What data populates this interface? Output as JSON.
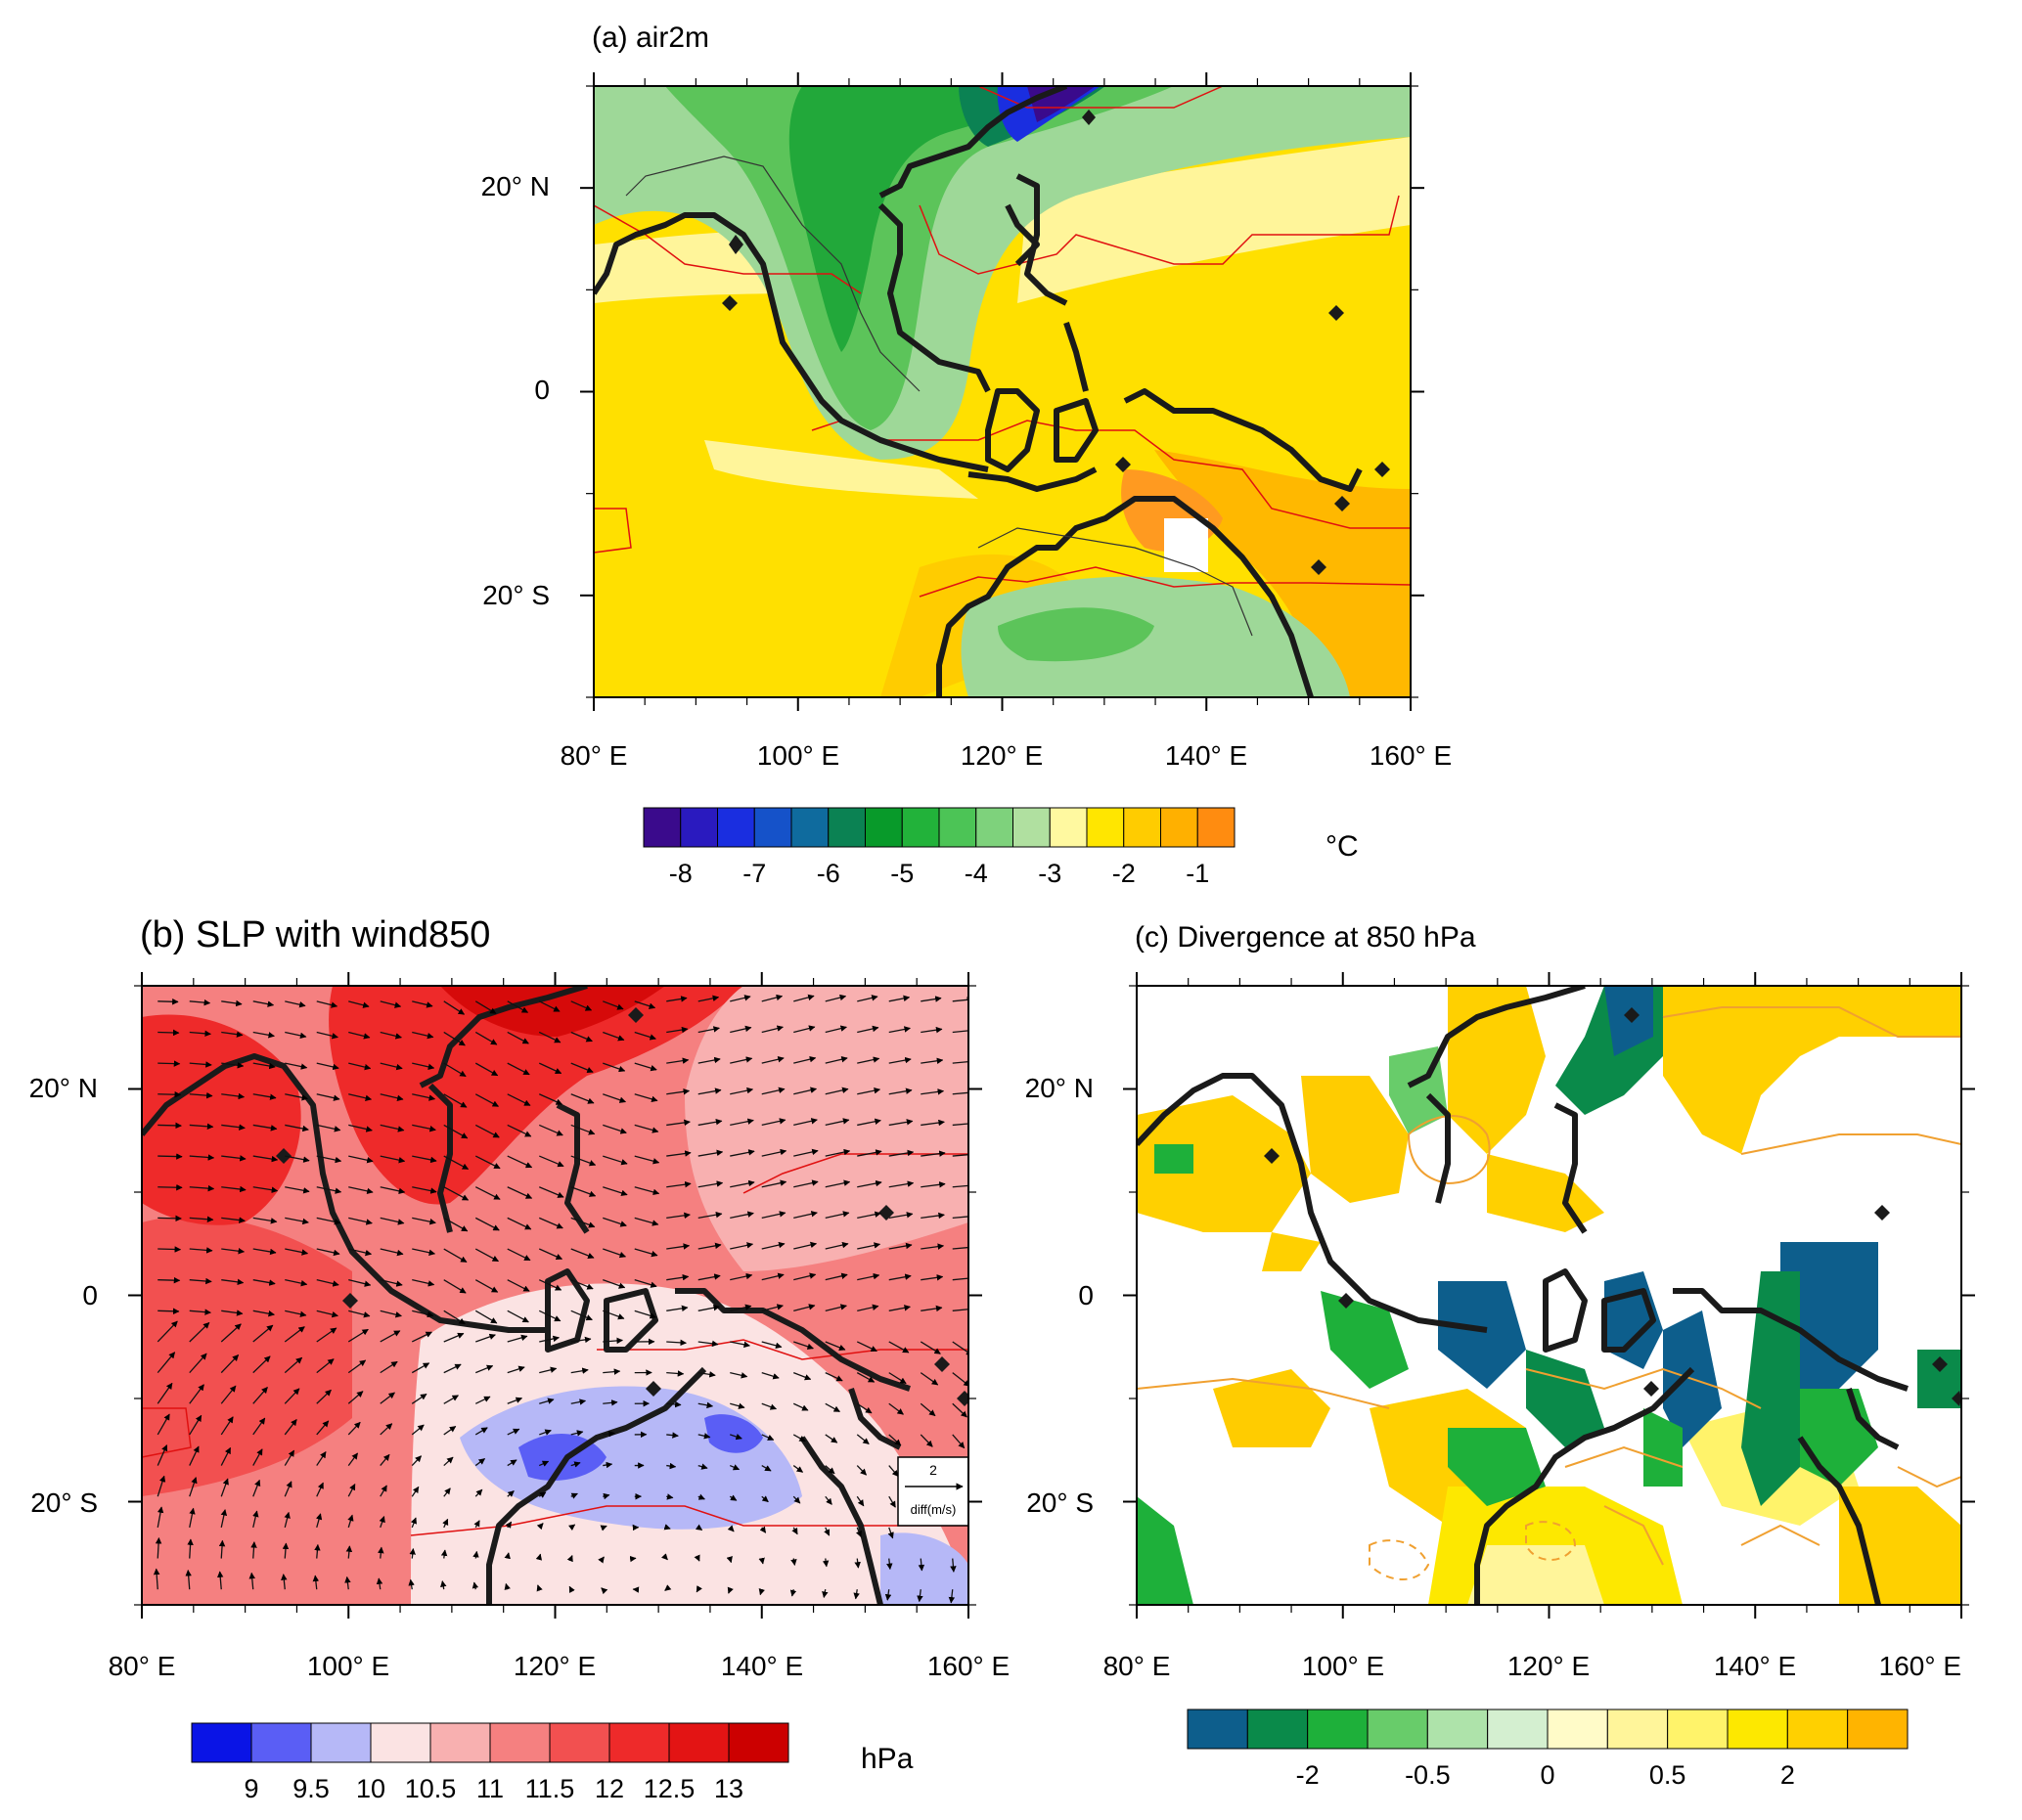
{
  "panels": [
    {
      "id": "a",
      "title": "(a) air2m",
      "variable": "2 m air temperature difference",
      "lon_labels": [
        "80° E",
        "100° E",
        "120° E",
        "140° E",
        "160° E"
      ],
      "lat_labels": [
        "20° N",
        "0",
        "20° S"
      ],
      "colorbar": {
        "unit": "°C",
        "labels": [
          "-8",
          "-7",
          "-6",
          "-5",
          "-4",
          "-3",
          "-2",
          "-1"
        ],
        "colors": [
          "#3a0a8c",
          "#2a1abf",
          "#1a2ee0",
          "#1552c9",
          "#0f6b9e",
          "#0b8253",
          "#089a2a",
          "#22b23a",
          "#4cc456",
          "#7ed27c",
          "#b0e0a0",
          "#fff9a0",
          "#ffe600",
          "#ffcc00",
          "#ffb000",
          "#ff8c10"
        ]
      }
    },
    {
      "id": "b",
      "title": "(b) SLP with wind850",
      "variable": "Sea level pressure difference with 850 hPa wind",
      "lon_labels": [
        "80° E",
        "100° E",
        "120° E",
        "140° E",
        "160° E"
      ],
      "lat_labels": [
        "20° N",
        "0",
        "20° S"
      ],
      "ref_vector": {
        "magnitude": "2",
        "label": "diff(m/s)"
      },
      "colorbar": {
        "unit": "hPa",
        "labels": [
          "9",
          "9.5",
          "10",
          "10.5",
          "11",
          "11.5",
          "12",
          "12.5",
          "13"
        ],
        "colors": [
          "#0a14e6",
          "#5a5ef5",
          "#b6b8f7",
          "#fbe3e3",
          "#f8b0b0",
          "#f58080",
          "#f25050",
          "#ee2a2a",
          "#e31414",
          "#cc0000"
        ]
      }
    },
    {
      "id": "c",
      "title": "(c) Divergence at 850 hPa",
      "variable": "Divergence at 850 hPa",
      "lon_labels": [
        "80° E",
        "100° E",
        "120° E",
        "140° E",
        "160° E"
      ],
      "lat_labels": [
        "20° N",
        "0",
        "20° S"
      ],
      "colorbar": {
        "unit": "",
        "labels": [
          "-2",
          "-0.5",
          "0",
          "0.5",
          "2"
        ],
        "colors": [
          "#0d5e8c",
          "#0a8a4a",
          "#1eb03a",
          "#68cc6a",
          "#aee3aa",
          "#d4efd0",
          "#fffbc8",
          "#fff59a",
          "#fff36a",
          "#fde800",
          "#ffd000",
          "#ffb400"
        ]
      }
    }
  ]
}
